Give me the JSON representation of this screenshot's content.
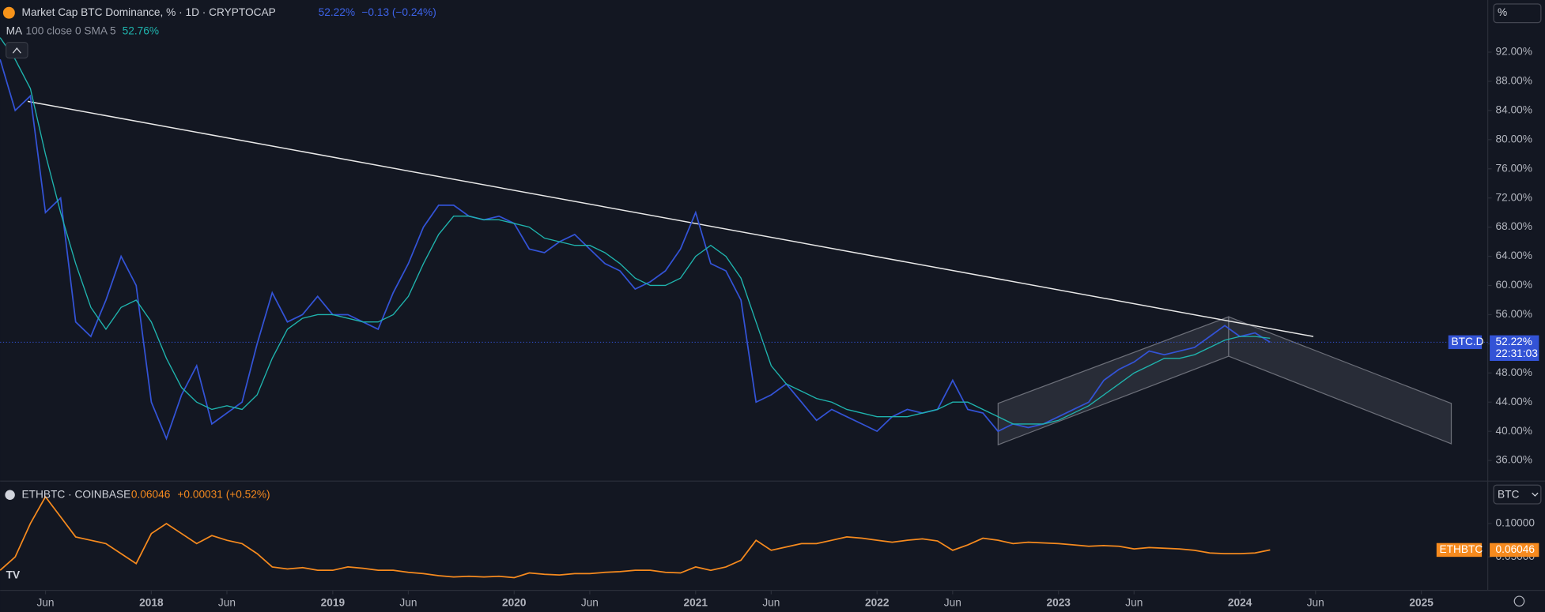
{
  "chart_data": [
    {
      "type": "line",
      "title": "Market Cap BTC Dominance, % · 1D · CRYPTOCAP",
      "last_label": "52.22%",
      "change": "−0.13 (−0.24%)",
      "indicator": {
        "name": "MA",
        "params": "100 close 0 SMA 5",
        "last_label": "52.76%"
      },
      "price_tag": {
        "name": "BTC.D",
        "value_label": "52.22%",
        "countdown": "22:31:03"
      },
      "unit_button": "%",
      "xlim": [
        "2017-03",
        "2025-05"
      ],
      "ylim": [
        33.3,
        99.15
      ],
      "yticks": [
        {
          "value": 36,
          "label": "36.00%"
        },
        {
          "value": 40,
          "label": "40.00%"
        },
        {
          "value": 44,
          "label": "44.00%"
        },
        {
          "value": 48,
          "label": "48.00%"
        },
        {
          "value": 52,
          "label": "52.00%"
        },
        {
          "value": 56,
          "label": "56.00%"
        },
        {
          "value": 60,
          "label": "60.00%"
        },
        {
          "value": 64,
          "label": "64.00%"
        },
        {
          "value": 68,
          "label": "68.00%"
        },
        {
          "value": 72,
          "label": "72.00%"
        },
        {
          "value": 76,
          "label": "76.00%"
        },
        {
          "value": 80,
          "label": "80.00%"
        },
        {
          "value": 84,
          "label": "84.00%"
        },
        {
          "value": 88,
          "label": "88.00%"
        },
        {
          "value": 92,
          "label": "92.00%"
        }
      ],
      "x": [
        "2017-03",
        "2017-04",
        "2017-05",
        "2017-06",
        "2017-07",
        "2017-08",
        "2017-09",
        "2017-10",
        "2017-11",
        "2017-12",
        "2018-01",
        "2018-02",
        "2018-03",
        "2018-04",
        "2018-05",
        "2018-06",
        "2018-07",
        "2018-08",
        "2018-09",
        "2018-10",
        "2018-11",
        "2018-12",
        "2019-01",
        "2019-02",
        "2019-03",
        "2019-04",
        "2019-05",
        "2019-06",
        "2019-07",
        "2019-08",
        "2019-09",
        "2019-10",
        "2019-11",
        "2019-12",
        "2020-01",
        "2020-02",
        "2020-03",
        "2020-04",
        "2020-05",
        "2020-06",
        "2020-07",
        "2020-08",
        "2020-09",
        "2020-10",
        "2020-11",
        "2020-12",
        "2021-01",
        "2021-02",
        "2021-03",
        "2021-04",
        "2021-05",
        "2021-06",
        "2021-07",
        "2021-08",
        "2021-09",
        "2021-10",
        "2021-11",
        "2021-12",
        "2022-01",
        "2022-02",
        "2022-03",
        "2022-04",
        "2022-05",
        "2022-06",
        "2022-07",
        "2022-08",
        "2022-09",
        "2022-10",
        "2022-11",
        "2022-12",
        "2023-01",
        "2023-02",
        "2023-03",
        "2023-04",
        "2023-05",
        "2023-06",
        "2023-07",
        "2023-08",
        "2023-09",
        "2023-10",
        "2023-11",
        "2023-12",
        "2024-01",
        "2024-02",
        "2024-03"
      ],
      "series": [
        {
          "name": "BTC.D",
          "color": "#3353d6",
          "values": [
            91,
            84,
            86,
            70,
            72,
            55,
            53,
            58,
            64,
            60,
            44,
            39,
            45,
            49,
            41,
            42.5,
            44,
            52,
            59,
            55,
            56,
            58.5,
            56,
            56,
            55,
            54,
            59,
            63,
            68,
            71,
            71,
            69.5,
            69,
            69.5,
            68.5,
            65,
            64.5,
            66,
            67,
            65,
            63,
            62,
            59.5,
            60.5,
            62,
            65,
            70,
            63,
            62,
            58,
            44,
            45,
            46.5,
            44,
            41.5,
            43,
            42,
            41,
            40,
            42,
            43,
            42.5,
            43,
            47,
            43,
            42.5,
            40,
            41,
            40.5,
            41,
            42,
            43,
            44,
            47,
            48.5,
            49.5,
            51,
            50.5,
            51,
            51.5,
            53,
            54.5,
            53,
            53.5,
            52.22
          ]
        },
        {
          "name": "MA",
          "color": "#1fb3ad",
          "values": [
            94,
            91,
            87,
            78,
            70,
            63,
            57,
            54,
            57,
            58,
            55,
            50,
            46,
            44,
            43,
            43.5,
            43,
            45,
            50,
            54,
            55.5,
            56,
            56,
            55.5,
            55,
            55,
            56,
            58.5,
            63,
            67,
            69.5,
            69.5,
            69,
            69,
            68.5,
            68,
            66.5,
            66,
            65.5,
            65.5,
            64.5,
            63,
            61,
            60,
            60,
            61,
            64,
            65.5,
            64,
            61,
            55,
            49,
            46.5,
            45.5,
            44.5,
            44,
            43,
            42.5,
            42,
            42,
            42,
            42.5,
            43,
            44,
            44,
            43,
            42,
            41,
            41,
            41,
            41.5,
            42.5,
            43.5,
            45,
            46.5,
            48,
            49,
            50,
            50,
            50.5,
            51.5,
            52.5,
            53,
            53,
            52.76
          ]
        }
      ]
    },
    {
      "type": "line",
      "title": "ETHBTC · COINBASE",
      "last_label": "0.06046",
      "change": "+0.00031 (+0.52%)",
      "currency_button": "BTC",
      "price_tag": {
        "name": "ETHBTC",
        "value_label": "0.06046"
      },
      "xlim": [
        "2017-03",
        "2025-05"
      ],
      "ylim": [
        0,
        0.162
      ],
      "yticks": [
        {
          "value": 0.05,
          "label": "0.05000"
        },
        {
          "value": 0.1,
          "label": "0.10000"
        }
      ],
      "xticks": [
        {
          "value": "2017-06",
          "label": "Jun"
        },
        {
          "value": "2018-01",
          "label": "2018"
        },
        {
          "value": "2018-06",
          "label": "Jun"
        },
        {
          "value": "2019-01",
          "label": "2019"
        },
        {
          "value": "2019-06",
          "label": "Jun"
        },
        {
          "value": "2020-01",
          "label": "2020"
        },
        {
          "value": "2020-06",
          "label": "Jun"
        },
        {
          "value": "2021-01",
          "label": "2021"
        },
        {
          "value": "2021-06",
          "label": "Jun"
        },
        {
          "value": "2022-01",
          "label": "2022"
        },
        {
          "value": "2022-06",
          "label": "Jun"
        },
        {
          "value": "2023-01",
          "label": "2023"
        },
        {
          "value": "2023-06",
          "label": "Jun"
        },
        {
          "value": "2024-01",
          "label": "2024"
        },
        {
          "value": "2024-06",
          "label": "Jun"
        },
        {
          "value": "2025-01",
          "label": "2025"
        }
      ],
      "x": [
        "2017-03",
        "2017-04",
        "2017-05",
        "2017-06",
        "2017-07",
        "2017-08",
        "2017-09",
        "2017-10",
        "2017-11",
        "2017-12",
        "2018-01",
        "2018-02",
        "2018-03",
        "2018-04",
        "2018-05",
        "2018-06",
        "2018-07",
        "2018-08",
        "2018-09",
        "2018-10",
        "2018-11",
        "2018-12",
        "2019-01",
        "2019-02",
        "2019-03",
        "2019-04",
        "2019-05",
        "2019-06",
        "2019-07",
        "2019-08",
        "2019-09",
        "2019-10",
        "2019-11",
        "2019-12",
        "2020-01",
        "2020-02",
        "2020-03",
        "2020-04",
        "2020-05",
        "2020-06",
        "2020-07",
        "2020-08",
        "2020-09",
        "2020-10",
        "2020-11",
        "2020-12",
        "2021-01",
        "2021-02",
        "2021-03",
        "2021-04",
        "2021-05",
        "2021-06",
        "2021-07",
        "2021-08",
        "2021-09",
        "2021-10",
        "2021-11",
        "2021-12",
        "2022-01",
        "2022-02",
        "2022-03",
        "2022-04",
        "2022-05",
        "2022-06",
        "2022-07",
        "2022-08",
        "2022-09",
        "2022-10",
        "2022-11",
        "2022-12",
        "2023-01",
        "2023-02",
        "2023-03",
        "2023-04",
        "2023-05",
        "2023-06",
        "2023-07",
        "2023-08",
        "2023-09",
        "2023-10",
        "2023-11",
        "2023-12",
        "2024-01",
        "2024-02",
        "2024-03"
      ],
      "series": [
        {
          "name": "ETHBTC",
          "color": "#f68a1e",
          "values": [
            0.03,
            0.05,
            0.1,
            0.14,
            0.11,
            0.08,
            0.075,
            0.07,
            0.055,
            0.04,
            0.085,
            0.1,
            0.085,
            0.07,
            0.082,
            0.075,
            0.07,
            0.055,
            0.035,
            0.032,
            0.034,
            0.03,
            0.03,
            0.035,
            0.033,
            0.03,
            0.03,
            0.027,
            0.025,
            0.022,
            0.02,
            0.021,
            0.02,
            0.021,
            0.019,
            0.026,
            0.024,
            0.023,
            0.025,
            0.025,
            0.027,
            0.028,
            0.03,
            0.03,
            0.027,
            0.026,
            0.035,
            0.03,
            0.035,
            0.045,
            0.075,
            0.06,
            0.065,
            0.07,
            0.07,
            0.075,
            0.08,
            0.078,
            0.075,
            0.072,
            0.075,
            0.077,
            0.074,
            0.06,
            0.068,
            0.078,
            0.075,
            0.07,
            0.072,
            0.071,
            0.07,
            0.068,
            0.066,
            0.067,
            0.066,
            0.062,
            0.064,
            0.063,
            0.062,
            0.06,
            0.056,
            0.055,
            0.055,
            0.056,
            0.06046
          ]
        }
      ]
    }
  ]
}
